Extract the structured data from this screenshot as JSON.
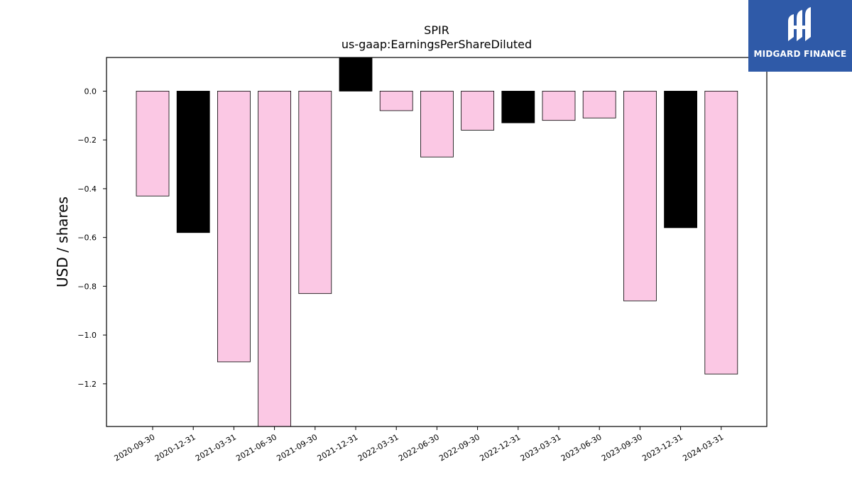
{
  "brand": {
    "name": "MIDGARD FINANCE",
    "color": "#2f5aa8"
  },
  "chart_data": {
    "type": "bar",
    "title": "SPIR",
    "subtitle": "us-gaap:EarningsPerShareDiluted",
    "xlabel": "",
    "ylabel": "USD / shares",
    "categories": [
      "2020-09-30",
      "2020-12-31",
      "2021-03-31",
      "2021-06-30",
      "2021-09-30",
      "2021-12-31",
      "2022-03-31",
      "2022-06-30",
      "2022-09-30",
      "2022-12-31",
      "2023-03-31",
      "2023-06-30",
      "2023-09-30",
      "2023-12-31",
      "2024-03-31"
    ],
    "values": [
      -0.43,
      -0.58,
      -1.11,
      -1.4,
      -0.83,
      0.16,
      -0.08,
      -0.27,
      -0.16,
      -0.13,
      -0.12,
      -0.11,
      -0.86,
      -0.56,
      -1.16
    ],
    "bar_colors": [
      "#fbc8e4",
      "#000000",
      "#fbc8e4",
      "#fbc8e4",
      "#fbc8e4",
      "#000000",
      "#fbc8e4",
      "#fbc8e4",
      "#fbc8e4",
      "#000000",
      "#fbc8e4",
      "#fbc8e4",
      "#fbc8e4",
      "#000000",
      "#fbc8e4"
    ],
    "yticks": [
      0.0,
      -0.2,
      -0.4,
      -0.6,
      -0.8,
      -1.0,
      -1.2
    ],
    "ytick_labels": [
      "0.0",
      "−0.2",
      "−0.4",
      "−0.6",
      "−0.8",
      "−1.0",
      "−1.2"
    ],
    "ylim": [
      -1.375,
      0.138
    ],
    "grid": false,
    "legend": "none"
  }
}
